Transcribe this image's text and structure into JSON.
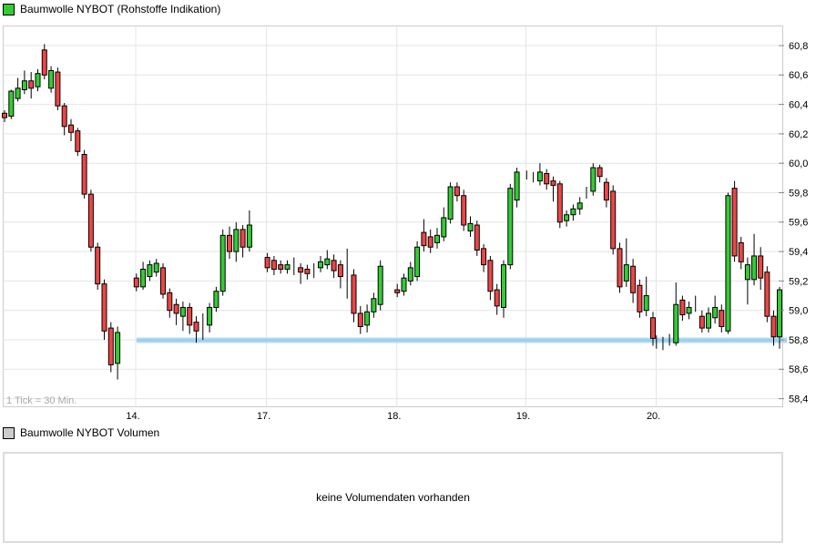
{
  "chart_data": [
    {
      "type": "candlestick",
      "title": "Baumwolle NYBOT (Rohstoffe Indikation)",
      "footnote": "1 Tick = 30 Min.",
      "tick_interval": "30 Min.",
      "ylim": [
        58.4,
        60.9
      ],
      "y_ticks": [
        60.8,
        60.6,
        60.4,
        60.2,
        60.0,
        59.8,
        59.6,
        59.4,
        59.2,
        59.0,
        58.8,
        58.6,
        58.4
      ],
      "y_tick_labels": [
        "60,8",
        "60,6",
        "60,4",
        "60,2",
        "60,0",
        "59,8",
        "59,6",
        "59,4",
        "59,2",
        "59,0",
        "58,8",
        "58,6",
        "58,4"
      ],
      "grid": true,
      "legend_position": "top-left",
      "support_line": {
        "price": 58.8,
        "color": "#a8d8f1"
      },
      "colors": {
        "up": "#33cc33",
        "down": "#ee4545",
        "wick": "#000000",
        "grid": "#e4e4e4",
        "frame": "#cccccc",
        "axis_text": "#000000",
        "footnote_text": "#a9a9a9",
        "legend_volume": "#cccccc"
      },
      "days": [
        {
          "label": "",
          "ohlc": [
            [
              60.34,
              60.36,
              60.28,
              60.31
            ],
            [
              60.32,
              60.5,
              60.3,
              60.49
            ],
            [
              60.44,
              60.58,
              60.42,
              60.51
            ],
            [
              60.5,
              60.63,
              60.47,
              60.56
            ],
            [
              60.56,
              60.62,
              60.44,
              60.51
            ],
            [
              60.52,
              60.64,
              60.49,
              60.61
            ],
            [
              60.77,
              60.81,
              60.57,
              60.6
            ],
            [
              60.51,
              60.66,
              60.48,
              60.63
            ],
            [
              60.62,
              60.65,
              60.36,
              60.39
            ],
            [
              60.39,
              60.41,
              60.19,
              60.25
            ],
            [
              60.26,
              60.3,
              60.15,
              60.21
            ],
            [
              60.22,
              60.24,
              60.05,
              60.08
            ],
            [
              60.06,
              60.09,
              59.76,
              59.79
            ],
            [
              59.79,
              59.82,
              59.4,
              59.43
            ],
            [
              59.43,
              59.46,
              59.14,
              59.18
            ],
            [
              59.18,
              59.21,
              58.8,
              58.86
            ],
            [
              58.88,
              58.92,
              58.58,
              58.63
            ],
            [
              58.64,
              58.89,
              58.53,
              58.85
            ]
          ]
        },
        {
          "label": "14.",
          "ohlc": [
            [
              59.22,
              59.25,
              59.13,
              59.16
            ],
            [
              59.16,
              59.33,
              59.14,
              59.28
            ],
            [
              59.23,
              59.34,
              59.2,
              59.31
            ],
            [
              59.26,
              59.35,
              59.23,
              59.32
            ],
            [
              59.29,
              59.32,
              59.08,
              59.11
            ],
            [
              59.12,
              59.15,
              58.95,
              59.0
            ],
            [
              59.04,
              59.08,
              58.9,
              58.98
            ],
            [
              58.96,
              59.06,
              58.86,
              59.02
            ],
            [
              59.02,
              59.05,
              58.84,
              58.9
            ],
            [
              58.92,
              58.96,
              58.78,
              58.86
            ],
            [
              58.88,
              58.98,
              58.8,
              58.89
            ],
            [
              58.9,
              59.05,
              58.85,
              59.02
            ],
            [
              59.02,
              59.16,
              58.99,
              59.13
            ],
            [
              59.13,
              59.55,
              59.1,
              59.51
            ],
            [
              59.51,
              59.57,
              59.35,
              59.4
            ],
            [
              59.4,
              59.6,
              59.33,
              59.55
            ],
            [
              59.55,
              59.58,
              59.36,
              59.43
            ],
            [
              59.43,
              59.68,
              59.4,
              59.58
            ]
          ]
        },
        {
          "label": "17.",
          "ohlc": [
            [
              59.36,
              59.39,
              59.26,
              59.29
            ],
            [
              59.34,
              59.37,
              59.24,
              59.28
            ],
            [
              59.31,
              59.34,
              59.25,
              59.28
            ],
            [
              59.28,
              59.34,
              59.25,
              59.31
            ],
            [
              59.3,
              59.36,
              59.24,
              59.3
            ],
            [
              59.29,
              59.32,
              59.18,
              59.26
            ],
            [
              59.28,
              59.31,
              59.21,
              59.25
            ],
            [
              59.27,
              59.32,
              59.22,
              59.27
            ],
            [
              59.29,
              59.37,
              59.26,
              59.33
            ],
            [
              59.31,
              59.41,
              59.28,
              59.35
            ],
            [
              59.34,
              59.38,
              59.22,
              59.27
            ],
            [
              59.31,
              59.34,
              59.15,
              59.23
            ],
            [
              59.25,
              59.42,
              59.08,
              59.24
            ],
            [
              59.24,
              59.28,
              58.92,
              58.98
            ],
            [
              58.98,
              59.03,
              58.84,
              58.89
            ],
            [
              58.9,
              59.04,
              58.85,
              58.99
            ],
            [
              58.99,
              59.12,
              58.95,
              59.08
            ],
            [
              59.04,
              59.34,
              59.0,
              59.3
            ]
          ]
        },
        {
          "label": "18.",
          "ohlc": [
            [
              59.14,
              59.18,
              59.09,
              59.12
            ],
            [
              59.13,
              59.25,
              59.1,
              59.22
            ],
            [
              59.2,
              59.33,
              59.17,
              59.29
            ],
            [
              59.23,
              59.47,
              59.2,
              59.43
            ],
            [
              59.53,
              59.62,
              59.4,
              59.44
            ],
            [
              59.5,
              59.55,
              59.39,
              59.43
            ],
            [
              59.46,
              59.56,
              59.42,
              59.51
            ],
            [
              59.5,
              59.7,
              59.47,
              59.63
            ],
            [
              59.62,
              59.87,
              59.59,
              59.84
            ],
            [
              59.84,
              59.87,
              59.74,
              59.78
            ],
            [
              59.78,
              59.82,
              59.54,
              59.58
            ],
            [
              59.54,
              59.64,
              59.5,
              59.59
            ],
            [
              59.58,
              59.61,
              59.37,
              59.41
            ],
            [
              59.42,
              59.45,
              59.26,
              59.31
            ],
            [
              59.34,
              59.37,
              59.07,
              59.13
            ],
            [
              59.14,
              59.18,
              58.97,
              59.03
            ],
            [
              59.02,
              59.34,
              58.95,
              59.31
            ],
            [
              59.31,
              59.86,
              59.28,
              59.83
            ],
            [
              59.75,
              59.97,
              59.7,
              59.94
            ]
          ]
        },
        {
          "label": "19.",
          "ohlc": [
            [
              59.92,
              59.95,
              59.89,
              59.92
            ],
            [
              59.91,
              59.94,
              59.87,
              59.91
            ],
            [
              59.88,
              60.0,
              59.85,
              59.94
            ],
            [
              59.93,
              59.96,
              59.82,
              59.86
            ],
            [
              59.88,
              59.91,
              59.74,
              59.85
            ],
            [
              59.86,
              59.88,
              59.56,
              59.6
            ],
            [
              59.61,
              59.68,
              59.57,
              59.65
            ],
            [
              59.65,
              59.72,
              59.61,
              59.69
            ],
            [
              59.69,
              59.77,
              59.65,
              59.73
            ],
            [
              59.8,
              59.84,
              59.76,
              59.81
            ],
            [
              59.81,
              60.0,
              59.78,
              59.97
            ],
            [
              59.97,
              59.99,
              59.87,
              59.91
            ],
            [
              59.87,
              59.9,
              59.7,
              59.75
            ],
            [
              59.81,
              59.85,
              59.38,
              59.42
            ],
            [
              59.42,
              59.46,
              59.12,
              59.16
            ],
            [
              59.2,
              59.49,
              59.16,
              59.31
            ],
            [
              59.3,
              59.35,
              59.05,
              59.12
            ],
            [
              59.17,
              59.21,
              58.95,
              58.99
            ],
            [
              59.0,
              59.23,
              58.96,
              59.1
            ],
            [
              58.95,
              58.99,
              58.76,
              58.81
            ]
          ]
        },
        {
          "label": "20.",
          "ohlc": [
            [
              58.79,
              58.83,
              58.74,
              58.79
            ],
            [
              58.78,
              58.82,
              58.73,
              58.78
            ],
            [
              58.8,
              58.84,
              58.76,
              58.8
            ],
            [
              58.78,
              59.19,
              58.76,
              59.04
            ],
            [
              59.07,
              59.1,
              58.93,
              58.97
            ],
            [
              58.98,
              59.06,
              58.94,
              59.02
            ],
            [
              59.05,
              59.1,
              58.99,
              59.05
            ],
            [
              58.96,
              59.0,
              58.85,
              58.88
            ],
            [
              58.88,
              59.02,
              58.85,
              58.98
            ],
            [
              58.95,
              59.1,
              58.91,
              59.02
            ],
            [
              59.0,
              59.04,
              58.85,
              58.89
            ],
            [
              58.86,
              59.8,
              58.84,
              59.78
            ],
            [
              59.83,
              59.88,
              59.33,
              59.37
            ],
            [
              59.46,
              59.5,
              59.28,
              59.33
            ],
            [
              59.21,
              59.36,
              59.04,
              59.31
            ],
            [
              59.21,
              59.52,
              59.17,
              59.37
            ],
            [
              59.37,
              59.43,
              59.14,
              59.22
            ],
            [
              59.26,
              59.3,
              58.92,
              58.96
            ],
            [
              58.96,
              59.0,
              58.76,
              58.82
            ],
            [
              58.82,
              59.16,
              58.74,
              59.14
            ]
          ]
        }
      ]
    },
    {
      "type": "none",
      "title": "Baumwolle NYBOT Volumen",
      "message": "keine Volumendaten vorhanden"
    }
  ]
}
